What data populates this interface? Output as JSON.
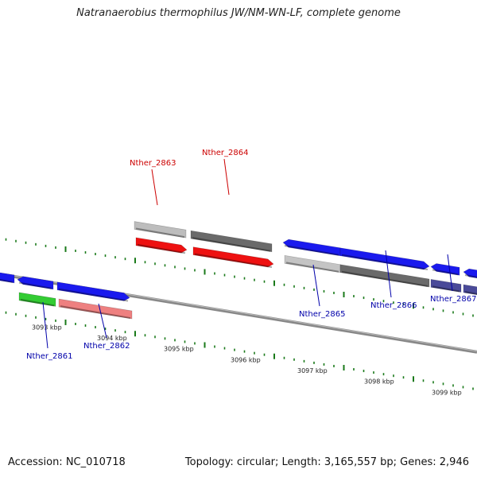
{
  "title": "Natranaerobius thermophilus JW/NM-WN-LF, complete genome",
  "footer": {
    "accession": "Accession: NC_010718",
    "summary": "Topology: circular; Length: 3,165,557 bp; Genes: 2,946"
  },
  "colors": {
    "backbone": "#7a7a7a",
    "tick": "#1a7a1a",
    "label_red": "#cc0000",
    "label_blue": "#0000aa"
  },
  "ticks": [
    "3093 kbp",
    "3094 kbp",
    "3095 kbp",
    "3096 kbp",
    "3097 kbp",
    "3098 kbp",
    "3099 kbp"
  ],
  "gene_labels": [
    {
      "text": "Nther_2861",
      "color": "blue"
    },
    {
      "text": "Nther_2862",
      "color": "blue"
    },
    {
      "text": "Nther_2863",
      "color": "red"
    },
    {
      "text": "Nther_2864",
      "color": "red"
    },
    {
      "text": "Nther_2865",
      "color": "blue"
    },
    {
      "text": "Nther_2866",
      "color": "blue"
    },
    {
      "text": "Nther_2867",
      "color": "blue"
    }
  ],
  "features": [
    {
      "name": "gene-left-edge",
      "color": "#1a1aee",
      "strand": "reverse"
    },
    {
      "name": "gene-2861-upper",
      "color": "#1a1aee",
      "strand": "reverse"
    },
    {
      "name": "gene-2862-upper",
      "color": "#1a1aee",
      "strand": "forward"
    },
    {
      "name": "gene-2861-lower",
      "color": "#33cc33",
      "strand": "forward"
    },
    {
      "name": "gene-2862-lower",
      "color": "#ee8080",
      "strand": "forward"
    },
    {
      "name": "gene-2863-upper",
      "color": "#bdbdbd",
      "strand": "forward"
    },
    {
      "name": "gene-2864-upper",
      "color": "#6a6a6a",
      "strand": "forward"
    },
    {
      "name": "gene-2863-lower",
      "color": "#ee1111",
      "strand": "forward"
    },
    {
      "name": "gene-2864-lower",
      "color": "#ee1111",
      "strand": "forward"
    },
    {
      "name": "gene-2865-upper",
      "color": "#1a1aee",
      "strand": "reverse"
    },
    {
      "name": "gene-2866-upper",
      "color": "#1a1aee",
      "strand": "forward"
    },
    {
      "name": "gene-2867-upper",
      "color": "#1a1aee",
      "strand": "reverse"
    },
    {
      "name": "gene-right-edge",
      "color": "#1a1aee",
      "strand": "reverse"
    },
    {
      "name": "gene-2865-lower",
      "color": "#c4c4c4",
      "strand": "forward"
    },
    {
      "name": "gene-2866-lower",
      "color": "#6a6a6a",
      "strand": "forward"
    },
    {
      "name": "gene-2867-lower",
      "color": "#4a4a99",
      "strand": "forward"
    },
    {
      "name": "gene-right-lower",
      "color": "#4a4a99",
      "strand": "forward"
    }
  ]
}
